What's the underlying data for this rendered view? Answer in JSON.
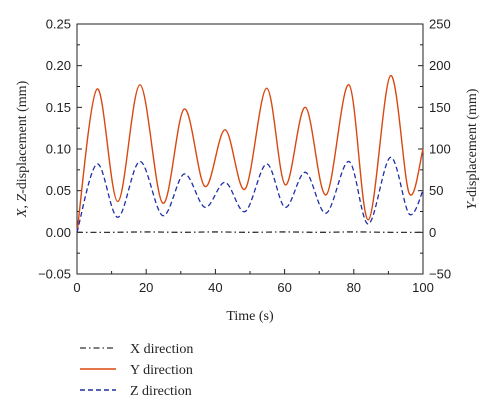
{
  "chart_data": {
    "type": "line",
    "xlabel": "Time (s)",
    "ylabel_left_var": "X, Z",
    "ylabel_left_rest": "-displacement (mm)",
    "ylabel_right_var": "Y",
    "ylabel_right_rest": "-displacement (mm)",
    "xlim": [
      0,
      100
    ],
    "ylim_left": [
      -0.05,
      0.25
    ],
    "ylim_right": [
      -50,
      250
    ],
    "x_ticks": [
      "0",
      "20",
      "40",
      "60",
      "80",
      "100"
    ],
    "y_left_ticks": [
      "−0.05",
      "0.00",
      "0.05",
      "0.10",
      "0.15",
      "0.20",
      "0.25"
    ],
    "y_right_ticks": [
      "−50",
      "0",
      "50",
      "100",
      "150",
      "200",
      "250"
    ],
    "legend_position": "bottom-left",
    "series": [
      {
        "name": "X direction",
        "axis": "left",
        "color": "#333333",
        "style": "dash-dot",
        "x": [
          0,
          10,
          20,
          30,
          40,
          50,
          60,
          70,
          80,
          90,
          100
        ],
        "y": [
          0.0,
          0.0,
          0.0005,
          0.0,
          0.0005,
          0.0,
          0.0005,
          0.0,
          0.0005,
          0.0,
          0.0
        ]
      },
      {
        "name": "Y direction",
        "axis": "right",
        "color": "#d9480f",
        "style": "solid",
        "x": [
          0,
          5.8,
          11.8,
          18.2,
          24.8,
          31.0,
          37.0,
          42.8,
          48.6,
          54.8,
          60.2,
          66.0,
          72.0,
          78.6,
          84.2,
          90.6,
          96.0,
          100
        ],
        "y": [
          0,
          172,
          37,
          177,
          35,
          148,
          55,
          123,
          52,
          173,
          57,
          150,
          45,
          177,
          15,
          188,
          47,
          100
        ]
      },
      {
        "name": "Z direction",
        "axis": "left",
        "color": "#1f2fa6",
        "style": "dashed",
        "x": [
          0,
          5.8,
          11.8,
          18.2,
          24.8,
          31.0,
          37.0,
          42.8,
          48.6,
          54.8,
          60.2,
          66.0,
          72.0,
          78.6,
          84.2,
          90.6,
          96.0,
          100
        ],
        "y": [
          0,
          0.082,
          0.018,
          0.085,
          0.02,
          0.07,
          0.03,
          0.06,
          0.025,
          0.082,
          0.03,
          0.072,
          0.023,
          0.085,
          0.01,
          0.09,
          0.022,
          0.05
        ]
      }
    ]
  }
}
